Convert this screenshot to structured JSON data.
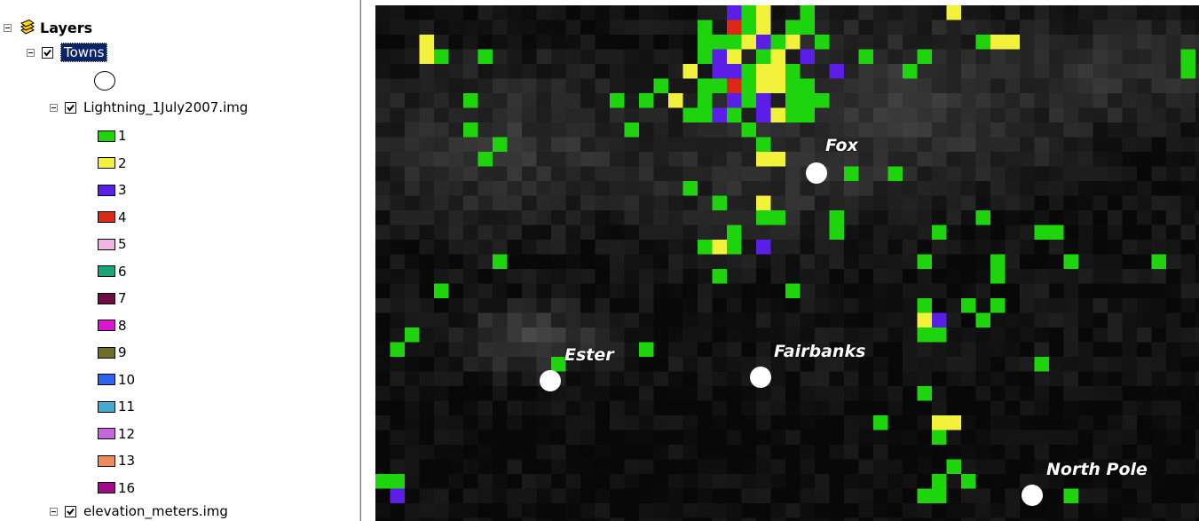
{
  "toc": {
    "root_label": "Layers",
    "towns_label": "Towns",
    "lightning_label": "Lightning_1July2007.img",
    "elevation_label": "elevation_meters.img",
    "legend": [
      {
        "label": "1",
        "color": "#1ed40c"
      },
      {
        "label": "2",
        "color": "#f2f23c"
      },
      {
        "label": "3",
        "color": "#5a1ee6"
      },
      {
        "label": "4",
        "color": "#dc2814"
      },
      {
        "label": "5",
        "color": "#f0b4e6"
      },
      {
        "label": "6",
        "color": "#14a878"
      },
      {
        "label": "7",
        "color": "#6e0a46"
      },
      {
        "label": "8",
        "color": "#dc14d2"
      },
      {
        "label": "9",
        "color": "#6e6e28"
      },
      {
        "label": "10",
        "color": "#2864f0"
      },
      {
        "label": "11",
        "color": "#46aad2"
      },
      {
        "label": "12",
        "color": "#c864dc"
      },
      {
        "label": "13",
        "color": "#f08c5a"
      },
      {
        "label": "16",
        "color": "#a00a8c"
      }
    ]
  },
  "map": {
    "towns": [
      "Fox",
      "Ester",
      "Fairbanks",
      "North Pole"
    ]
  }
}
